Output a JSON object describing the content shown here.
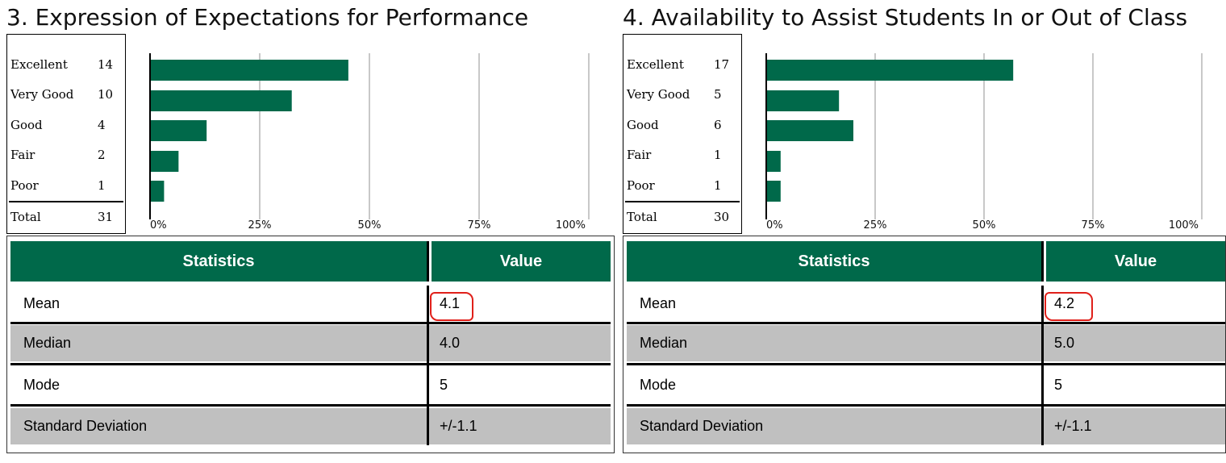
{
  "panels": [
    {
      "title": "3. Expression of Expectations for Performance",
      "table": {
        "rows": [
          {
            "label": "Excellent",
            "count": "14"
          },
          {
            "label": "Very Good",
            "count": "10"
          },
          {
            "label": "Good",
            "count": "4"
          },
          {
            "label": "Fair",
            "count": "2"
          },
          {
            "label": "Poor",
            "count": "1"
          }
        ],
        "total_label": "Total",
        "total": "31"
      },
      "stats": {
        "header_statistics": "Statistics",
        "header_value": "Value",
        "rows": [
          {
            "name": "Mean",
            "value": "4.1",
            "highlighted": true
          },
          {
            "name": "Median",
            "value": "4.0",
            "highlighted": false
          },
          {
            "name": "Mode",
            "value": "5",
            "highlighted": false
          },
          {
            "name": "Standard Deviation",
            "value": "+/-1.1",
            "highlighted": false
          }
        ]
      }
    },
    {
      "title": "4. Availability to Assist Students In or Out of Class",
      "table": {
        "rows": [
          {
            "label": "Excellent",
            "count": "17"
          },
          {
            "label": "Very Good",
            "count": "5"
          },
          {
            "label": "Good",
            "count": "6"
          },
          {
            "label": "Fair",
            "count": "1"
          },
          {
            "label": "Poor",
            "count": "1"
          }
        ],
        "total_label": "Total",
        "total": "30"
      },
      "stats": {
        "header_statistics": "Statistics",
        "header_value": "Value",
        "rows": [
          {
            "name": "Mean",
            "value": "4.2",
            "highlighted": true
          },
          {
            "name": "Median",
            "value": "5.0",
            "highlighted": false
          },
          {
            "name": "Mode",
            "value": "5",
            "highlighted": false
          },
          {
            "name": "Standard Deviation",
            "value": "+/-1.1",
            "highlighted": false
          }
        ]
      }
    }
  ],
  "chart_data": [
    {
      "type": "bar",
      "orientation": "horizontal",
      "title": "3. Expression of Expectations for Performance",
      "categories": [
        "Excellent",
        "Very Good",
        "Good",
        "Fair",
        "Poor"
      ],
      "values": [
        45.2,
        32.3,
        12.9,
        6.5,
        3.2
      ],
      "xlim": [
        0,
        100
      ],
      "xticks": [
        "0%",
        "25%",
        "50%",
        "75%",
        "100%"
      ],
      "grid": true,
      "bar_color": "#00694a",
      "grid_color": "#c8c8c8"
    },
    {
      "type": "bar",
      "orientation": "horizontal",
      "title": "4. Availability to Assist Students In or Out of Class",
      "categories": [
        "Excellent",
        "Very Good",
        "Good",
        "Fair",
        "Poor"
      ],
      "values": [
        56.7,
        16.7,
        20.0,
        3.3,
        3.3
      ],
      "xlim": [
        0,
        100
      ],
      "xticks": [
        "0%",
        "25%",
        "50%",
        "75%",
        "100%"
      ],
      "grid": true,
      "bar_color": "#00694a",
      "grid_color": "#c8c8c8"
    }
  ]
}
